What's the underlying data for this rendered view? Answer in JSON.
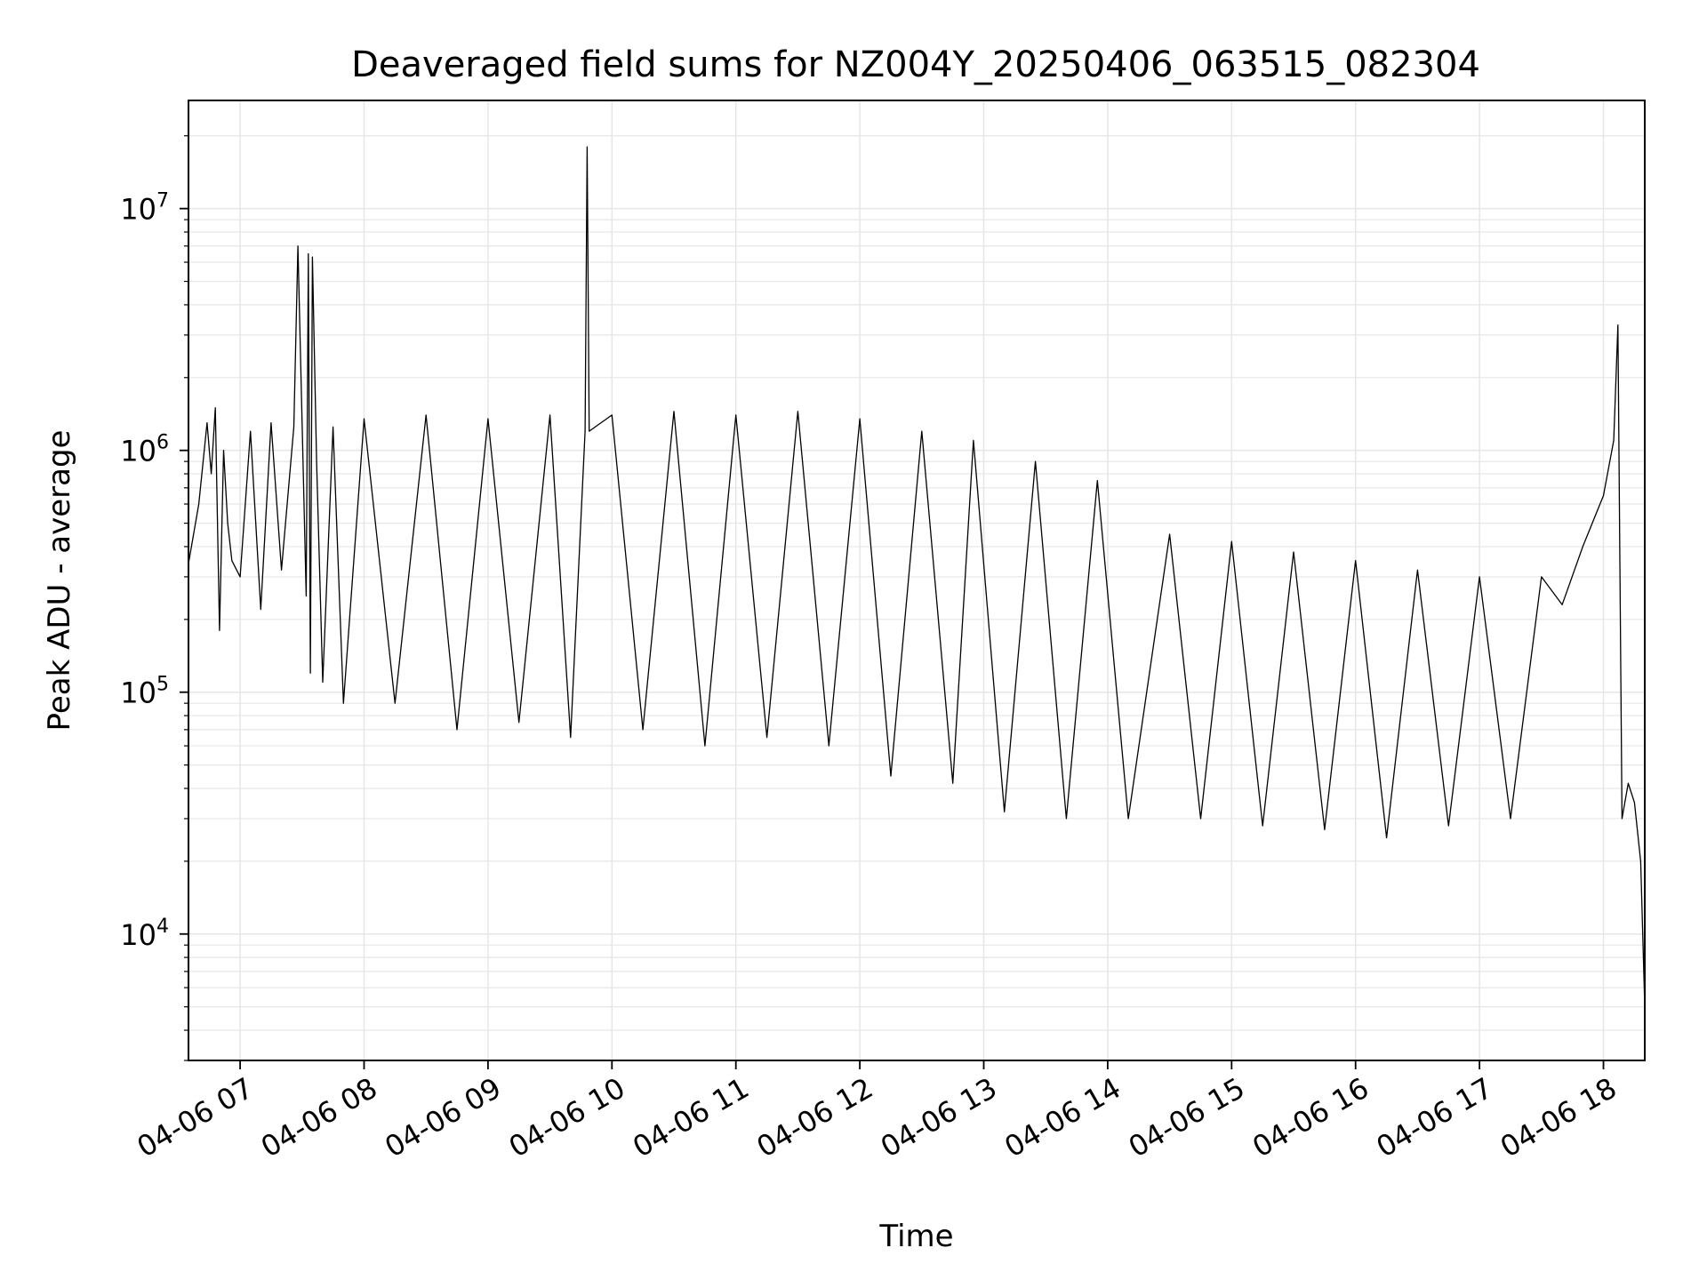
{
  "chart_data": {
    "type": "line",
    "title": "Deaveraged field sums for NZ004Y_20250406_063515_082304",
    "xlabel": "Time",
    "ylabel": "Peak ADU - average",
    "yscale": "log",
    "xlim": [
      "2025-04-06T06:35",
      "2025-04-06T18:20"
    ],
    "ylim": [
      3000,
      28000000
    ],
    "grid": true,
    "line_color": "#000000",
    "grid_color": "#e6e6e6",
    "x_tick_labels": [
      "04-06 07",
      "04-06 08",
      "04-06 09",
      "04-06 10",
      "04-06 11",
      "04-06 12",
      "04-06 13",
      "04-06 14",
      "04-06 15",
      "04-06 16",
      "04-06 17",
      "04-06 18"
    ],
    "x_tick_values": [
      "2025-04-06T07:00",
      "2025-04-06T08:00",
      "2025-04-06T09:00",
      "2025-04-06T10:00",
      "2025-04-06T11:00",
      "2025-04-06T12:00",
      "2025-04-06T13:00",
      "2025-04-06T14:00",
      "2025-04-06T15:00",
      "2025-04-06T16:00",
      "2025-04-06T17:00",
      "2025-04-06T18:00"
    ],
    "y_ticks": [
      {
        "base": "10",
        "exp": "4",
        "value": 10000
      },
      {
        "base": "10",
        "exp": "5",
        "value": 100000
      },
      {
        "base": "10",
        "exp": "6",
        "value": 1000000
      },
      {
        "base": "10",
        "exp": "7",
        "value": 10000000
      }
    ],
    "series": [
      {
        "x": [
          "2025-04-06T06:35",
          "2025-04-06T06:40",
          "2025-04-06T06:44",
          "2025-04-06T06:46",
          "2025-04-06T06:48",
          "2025-04-06T06:50",
          "2025-04-06T06:52",
          "2025-04-06T06:54",
          "2025-04-06T06:56",
          "2025-04-06T07:00",
          "2025-04-06T07:05",
          "2025-04-06T07:10",
          "2025-04-06T07:15",
          "2025-04-06T07:20",
          "2025-04-06T07:26",
          "2025-04-06T07:28",
          "2025-04-06T07:30",
          "2025-04-06T07:32",
          "2025-04-06T07:33",
          "2025-04-06T07:34",
          "2025-04-06T07:35",
          "2025-04-06T07:37",
          "2025-04-06T07:40",
          "2025-04-06T07:45",
          "2025-04-06T07:50",
          "2025-04-06T08:00",
          "2025-04-06T08:15",
          "2025-04-06T08:30",
          "2025-04-06T08:45",
          "2025-04-06T09:00",
          "2025-04-06T09:15",
          "2025-04-06T09:30",
          "2025-04-06T09:40",
          "2025-04-06T09:47",
          "2025-04-06T09:48",
          "2025-04-06T09:49",
          "2025-04-06T10:00",
          "2025-04-06T10:15",
          "2025-04-06T10:30",
          "2025-04-06T10:45",
          "2025-04-06T11:00",
          "2025-04-06T11:15",
          "2025-04-06T11:30",
          "2025-04-06T11:45",
          "2025-04-06T12:00",
          "2025-04-06T12:15",
          "2025-04-06T12:30",
          "2025-04-06T12:45",
          "2025-04-06T12:55",
          "2025-04-06T13:10",
          "2025-04-06T13:25",
          "2025-04-06T13:40",
          "2025-04-06T13:55",
          "2025-04-06T14:10",
          "2025-04-06T14:30",
          "2025-04-06T14:45",
          "2025-04-06T15:00",
          "2025-04-06T15:15",
          "2025-04-06T15:30",
          "2025-04-06T15:45",
          "2025-04-06T16:00",
          "2025-04-06T16:15",
          "2025-04-06T16:30",
          "2025-04-06T16:45",
          "2025-04-06T17:00",
          "2025-04-06T17:15",
          "2025-04-06T17:30",
          "2025-04-06T17:40",
          "2025-04-06T17:50",
          "2025-04-06T18:00",
          "2025-04-06T18:05",
          "2025-04-06T18:07",
          "2025-04-06T18:09",
          "2025-04-06T18:12",
          "2025-04-06T18:15",
          "2025-04-06T18:18",
          "2025-04-06T18:20"
        ],
        "y": [
          340000,
          600000,
          1300000,
          800000,
          1500000,
          180000,
          1000000,
          500000,
          350000,
          300000,
          1200000,
          220000,
          1300000,
          320000,
          1250000,
          7000000,
          1300000,
          250000,
          6500000,
          120000,
          6300000,
          900000,
          110000,
          1250000,
          90000,
          1350000,
          90000,
          1400000,
          70000,
          1350000,
          75000,
          1400000,
          65000,
          1200000,
          18000000,
          1200000,
          1400000,
          70000,
          1450000,
          60000,
          1400000,
          65000,
          1450000,
          60000,
          1350000,
          45000,
          1200000,
          42000,
          1100000,
          32000,
          900000,
          30000,
          750000,
          30000,
          450000,
          30000,
          420000,
          28000,
          380000,
          27000,
          350000,
          25000,
          320000,
          28000,
          300000,
          30000,
          300000,
          230000,
          400000,
          650000,
          1100000,
          3300000,
          30000,
          42000,
          35000,
          20000,
          5000
        ]
      }
    ]
  }
}
